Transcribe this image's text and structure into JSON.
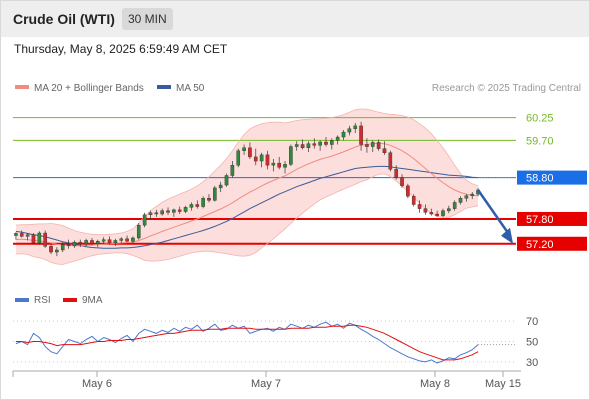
{
  "header": {
    "instrument": "Crude Oil (WTI)",
    "timeframe": "30 MIN",
    "timestamp": "Thursday, May 8, 2025 6:59:49 AM CET"
  },
  "legend": {
    "ma20_label": "MA 20 + Bollinger Bands",
    "ma50_label": "MA 50",
    "credit": "Research © 2025 Trading Central",
    "ma20_color": "#f28b82",
    "ma50_color": "#3b5b9a"
  },
  "rsi_legend": {
    "rsi_label": "RSI",
    "ma_label": "9MA",
    "rsi_color": "#4b78d0",
    "ma_color": "#e01010"
  },
  "x_axis": [
    "May 6",
    "May 7",
    "May 8",
    "May 15"
  ],
  "chart_data": [
    {
      "type": "line",
      "title": "Crude Oil (WTI) 30 MIN",
      "ylim": [
        56.3,
        60.7
      ],
      "levels": [
        {
          "value": 60.25,
          "label": "60.25",
          "kind": "resistance",
          "color": "#76b82a"
        },
        {
          "value": 59.7,
          "label": "59.70",
          "kind": "resistance",
          "color": "#76b82a"
        },
        {
          "value": 58.8,
          "label": "58.80",
          "kind": "pivot",
          "color": "#1a6ee6"
        },
        {
          "value": 57.8,
          "label": "57.80",
          "kind": "support",
          "color": "#e60000"
        },
        {
          "value": 57.2,
          "label": "57.20",
          "kind": "support",
          "color": "#e60000"
        }
      ],
      "candle_colors": {
        "up": "#2e8b3a",
        "down": "#d12c2c"
      },
      "candles": [
        [
          57.4,
          57.48,
          57.3,
          57.45
        ],
        [
          57.45,
          57.52,
          57.35,
          57.38
        ],
        [
          57.38,
          57.45,
          57.28,
          57.42
        ],
        [
          57.42,
          57.46,
          57.18,
          57.22
        ],
        [
          57.22,
          57.5,
          57.18,
          57.46
        ],
        [
          57.46,
          57.52,
          57.1,
          57.14
        ],
        [
          57.14,
          57.2,
          56.95,
          57.0
        ],
        [
          57.0,
          57.12,
          56.9,
          57.05
        ],
        [
          57.05,
          57.25,
          57.0,
          57.18
        ],
        [
          57.18,
          57.3,
          57.08,
          57.15
        ],
        [
          57.15,
          57.28,
          57.1,
          57.24
        ],
        [
          57.24,
          57.3,
          57.12,
          57.2
        ],
        [
          57.2,
          57.32,
          57.14,
          57.28
        ],
        [
          57.28,
          57.34,
          57.16,
          57.2
        ],
        [
          57.2,
          57.3,
          57.12,
          57.26
        ],
        [
          57.26,
          57.36,
          57.2,
          57.3
        ],
        [
          57.3,
          57.38,
          57.18,
          57.22
        ],
        [
          57.22,
          57.32,
          57.15,
          57.28
        ],
        [
          57.28,
          57.36,
          57.22,
          57.32
        ],
        [
          57.32,
          57.4,
          57.24,
          57.26
        ],
        [
          57.26,
          57.38,
          57.22,
          57.34
        ],
        [
          57.34,
          57.7,
          57.3,
          57.65
        ],
        [
          57.65,
          57.95,
          57.6,
          57.9
        ],
        [
          57.9,
          58.0,
          57.8,
          57.95
        ],
        [
          57.95,
          58.02,
          57.85,
          57.92
        ],
        [
          57.92,
          58.05,
          57.88,
          58.0
        ],
        [
          58.0,
          58.08,
          57.9,
          57.96
        ],
        [
          57.96,
          58.05,
          57.85,
          58.02
        ],
        [
          58.02,
          58.1,
          57.92,
          57.98
        ],
        [
          57.98,
          58.12,
          57.94,
          58.08
        ],
        [
          58.08,
          58.2,
          58.0,
          58.15
        ],
        [
          58.15,
          58.25,
          58.05,
          58.1
        ],
        [
          58.1,
          58.35,
          58.06,
          58.3
        ],
        [
          58.3,
          58.4,
          58.2,
          58.25
        ],
        [
          58.25,
          58.6,
          58.22,
          58.55
        ],
        [
          58.55,
          58.7,
          58.45,
          58.62
        ],
        [
          58.62,
          58.9,
          58.58,
          58.85
        ],
        [
          58.85,
          59.2,
          58.8,
          59.1
        ],
        [
          59.1,
          59.5,
          59.05,
          59.45
        ],
        [
          59.45,
          59.6,
          59.35,
          59.52
        ],
        [
          59.52,
          59.65,
          59.25,
          59.3
        ],
        [
          59.3,
          59.5,
          59.1,
          59.2
        ],
        [
          59.2,
          59.4,
          59.05,
          59.35
        ],
        [
          59.35,
          59.45,
          59.0,
          59.1
        ],
        [
          59.1,
          59.25,
          58.95,
          59.15
        ],
        [
          59.15,
          59.3,
          59.0,
          59.05
        ],
        [
          59.05,
          59.2,
          58.9,
          59.12
        ],
        [
          59.12,
          59.6,
          59.08,
          59.55
        ],
        [
          59.55,
          59.68,
          59.45,
          59.6
        ],
        [
          59.6,
          59.72,
          59.48,
          59.52
        ],
        [
          59.52,
          59.68,
          59.42,
          59.62
        ],
        [
          59.62,
          59.75,
          59.5,
          59.58
        ],
        [
          59.58,
          59.7,
          59.45,
          59.66
        ],
        [
          59.66,
          59.78,
          59.55,
          59.6
        ],
        [
          59.6,
          59.75,
          59.48,
          59.7
        ],
        [
          59.7,
          59.82,
          59.6,
          59.78
        ],
        [
          59.78,
          59.95,
          59.7,
          59.9
        ],
        [
          59.9,
          60.05,
          59.82,
          59.98
        ],
        [
          59.98,
          60.12,
          59.88,
          60.05
        ],
        [
          60.05,
          60.15,
          59.45,
          59.6
        ],
        [
          59.6,
          59.75,
          59.4,
          59.55
        ],
        [
          59.55,
          59.7,
          59.42,
          59.65
        ],
        [
          59.65,
          59.72,
          59.45,
          59.5
        ],
        [
          59.5,
          59.68,
          59.35,
          59.4
        ],
        [
          59.4,
          59.45,
          58.95,
          59.0
        ],
        [
          59.0,
          59.1,
          58.75,
          58.8
        ],
        [
          58.8,
          58.88,
          58.55,
          58.6
        ],
        [
          58.6,
          58.65,
          58.3,
          58.35
        ],
        [
          58.35,
          58.4,
          58.1,
          58.15
        ],
        [
          58.15,
          58.25,
          57.95,
          58.05
        ],
        [
          58.05,
          58.15,
          57.9,
          57.96
        ],
        [
          57.96,
          58.05,
          57.88,
          57.92
        ],
        [
          57.92,
          58.0,
          57.85,
          57.88
        ],
        [
          57.88,
          58.05,
          57.84,
          58.0
        ],
        [
          58.0,
          58.12,
          57.94,
          58.05
        ],
        [
          58.05,
          58.25,
          58.0,
          58.2
        ],
        [
          58.2,
          58.35,
          58.15,
          58.3
        ],
        [
          58.3,
          58.4,
          58.22,
          58.36
        ],
        [
          58.36,
          58.45,
          58.28,
          58.4
        ],
        [
          58.4,
          58.55,
          58.35,
          58.5
        ]
      ],
      "ma20": [
        57.3,
        57.31,
        57.3,
        57.28,
        57.27,
        57.25,
        57.22,
        57.19,
        57.17,
        57.16,
        57.15,
        57.15,
        57.16,
        57.17,
        57.18,
        57.19,
        57.2,
        57.21,
        57.22,
        57.23,
        57.24,
        57.28,
        57.33,
        57.39,
        57.44,
        57.5,
        57.55,
        57.6,
        57.65,
        57.7,
        57.75,
        57.8,
        57.86,
        57.92,
        57.98,
        58.04,
        58.11,
        58.19,
        58.28,
        58.37,
        58.45,
        58.52,
        58.6,
        58.67,
        58.73,
        58.79,
        58.84,
        58.92,
        59.0,
        59.07,
        59.13,
        59.19,
        59.24,
        59.28,
        59.32,
        59.37,
        59.42,
        59.48,
        59.54,
        59.58,
        59.6,
        59.62,
        59.63,
        59.62,
        59.58,
        59.52,
        59.45,
        59.36,
        59.26,
        59.14,
        59.02,
        58.9,
        58.78,
        58.68,
        58.58,
        58.5,
        58.44,
        58.4,
        58.37,
        58.36
      ],
      "bb_upper": [
        57.65,
        57.66,
        57.66,
        57.67,
        57.68,
        57.68,
        57.69,
        57.67,
        57.64,
        57.58,
        57.52,
        57.48,
        57.45,
        57.43,
        57.42,
        57.42,
        57.43,
        57.44,
        57.46,
        57.5,
        57.56,
        57.7,
        57.86,
        58.0,
        58.1,
        58.2,
        58.28,
        58.34,
        58.4,
        58.46,
        58.52,
        58.6,
        58.7,
        58.82,
        58.96,
        59.1,
        59.26,
        59.45,
        59.65,
        59.84,
        59.98,
        60.05,
        60.1,
        60.13,
        60.14,
        60.14,
        60.12,
        60.15,
        60.18,
        60.2,
        60.21,
        60.22,
        60.22,
        60.23,
        60.25,
        60.28,
        60.32,
        60.38,
        60.44,
        60.46,
        60.45,
        60.42,
        60.38,
        60.35,
        60.33,
        60.32,
        60.3,
        60.26,
        60.2,
        60.1,
        60.0,
        59.86,
        59.7,
        59.52,
        59.32,
        59.1,
        58.9,
        58.74,
        58.65,
        58.6
      ],
      "bb_lower": [
        56.95,
        56.96,
        56.94,
        56.89,
        56.86,
        56.82,
        56.75,
        56.71,
        56.7,
        56.74,
        56.78,
        56.82,
        56.87,
        56.91,
        56.94,
        56.96,
        56.97,
        56.98,
        56.98,
        56.96,
        56.92,
        56.86,
        56.8,
        56.78,
        56.78,
        56.8,
        56.82,
        56.86,
        56.9,
        56.94,
        56.98,
        57.0,
        57.02,
        57.02,
        57.0,
        56.98,
        56.96,
        56.93,
        56.91,
        56.9,
        56.92,
        56.99,
        57.1,
        57.21,
        57.32,
        57.44,
        57.56,
        57.69,
        57.82,
        57.94,
        58.05,
        58.16,
        58.26,
        58.33,
        58.39,
        58.46,
        58.52,
        58.58,
        58.64,
        58.7,
        58.75,
        58.82,
        58.88,
        58.89,
        58.83,
        58.72,
        58.6,
        58.46,
        58.32,
        58.18,
        58.04,
        57.94,
        57.86,
        57.84,
        57.84,
        57.9,
        57.98,
        58.06,
        58.09,
        58.12
      ],
      "ma50": [
        57.5,
        57.48,
        57.45,
        57.42,
        57.4,
        57.37,
        57.33,
        57.29,
        57.25,
        57.22,
        57.19,
        57.16,
        57.13,
        57.11,
        57.1,
        57.09,
        57.09,
        57.09,
        57.1,
        57.1,
        57.11,
        57.13,
        57.15,
        57.18,
        57.21,
        57.24,
        57.28,
        57.32,
        57.36,
        57.4,
        57.44,
        57.48,
        57.52,
        57.57,
        57.62,
        57.68,
        57.74,
        57.81,
        57.89,
        57.97,
        58.05,
        58.12,
        58.19,
        58.26,
        58.33,
        58.4,
        58.46,
        58.52,
        58.58,
        58.63,
        58.68,
        58.73,
        58.78,
        58.82,
        58.86,
        58.9,
        58.94,
        58.98,
        59.02,
        59.04,
        59.05,
        59.06,
        59.07,
        59.07,
        59.06,
        59.04,
        59.02,
        59.0,
        58.98,
        58.96,
        58.94,
        58.92,
        58.9,
        58.88,
        58.86,
        58.85,
        58.84,
        58.83,
        58.81,
        58.8
      ],
      "projection": {
        "from": 58.5,
        "to": 57.2
      }
    },
    {
      "type": "line",
      "title": "RSI",
      "ylim": [
        25,
        78
      ],
      "ticks": [
        70,
        50,
        30
      ],
      "rsi": [
        48,
        50,
        47,
        58,
        54,
        45,
        40,
        38,
        45,
        52,
        50,
        48,
        52,
        55,
        50,
        54,
        52,
        49,
        53,
        56,
        50,
        58,
        62,
        60,
        58,
        61,
        59,
        63,
        60,
        64,
        62,
        66,
        60,
        63,
        67,
        61,
        62,
        66,
        63,
        65,
        58,
        60,
        62,
        63,
        60,
        64,
        62,
        67,
        65,
        63,
        66,
        64,
        67,
        69,
        65,
        67,
        63,
        68,
        66,
        62,
        59,
        55,
        52,
        48,
        44,
        41,
        38,
        35,
        33,
        31,
        30,
        32,
        29,
        31,
        34,
        33,
        37,
        39,
        42,
        47
      ],
      "ma9": [
        50,
        50,
        49,
        50,
        50,
        49,
        48,
        46,
        47,
        47,
        47,
        47,
        48,
        49,
        50,
        50,
        51,
        51,
        51,
        52,
        52,
        53,
        54,
        55,
        56,
        57,
        58,
        58,
        59,
        60,
        61,
        61,
        61,
        62,
        62,
        62,
        63,
        63,
        63,
        63,
        63,
        62,
        62,
        62,
        62,
        62,
        62,
        63,
        63,
        63,
        63,
        64,
        64,
        64,
        65,
        65,
        65,
        66,
        66,
        65,
        64,
        62,
        60,
        58,
        55,
        52,
        49,
        46,
        43,
        40,
        38,
        36,
        34,
        32,
        32,
        32,
        33,
        35,
        37,
        40
      ]
    }
  ]
}
